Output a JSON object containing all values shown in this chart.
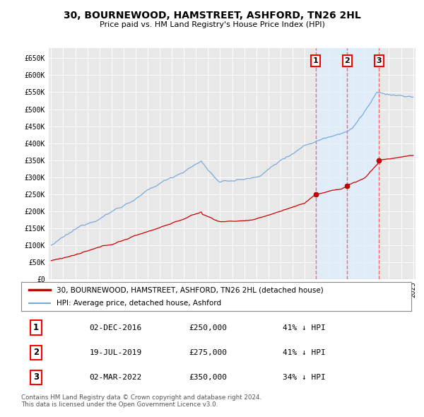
{
  "title": "30, BOURNEWOOD, HAMSTREET, ASHFORD, TN26 2HL",
  "subtitle": "Price paid vs. HM Land Registry's House Price Index (HPI)",
  "background_color": "#ffffff",
  "plot_bg_color": "#e8e8e8",
  "grid_color": "#ffffff",
  "ylim": [
    0,
    680000
  ],
  "yticks": [
    0,
    50000,
    100000,
    150000,
    200000,
    250000,
    300000,
    350000,
    400000,
    450000,
    500000,
    550000,
    600000,
    650000
  ],
  "ytick_labels": [
    "£0",
    "£50K",
    "£100K",
    "£150K",
    "£200K",
    "£250K",
    "£300K",
    "£350K",
    "£400K",
    "£450K",
    "£500K",
    "£550K",
    "£600K",
    "£650K"
  ],
  "sale_year_floats": [
    2016.92,
    2019.54,
    2022.17
  ],
  "sale_prices": [
    250000,
    275000,
    350000
  ],
  "sale_labels": [
    "1",
    "2",
    "3"
  ],
  "vline_color": "#ff6666",
  "shade_color": "#ddeeff",
  "sale_line_color": "#cc0000",
  "hpi_line_color": "#7aaadd",
  "sale_dot_color": "#cc0000",
  "legend_sale_label": "30, BOURNEWOOD, HAMSTREET, ASHFORD, TN26 2HL (detached house)",
  "legend_hpi_label": "HPI: Average price, detached house, Ashford",
  "table_rows": [
    [
      "1",
      "02-DEC-2016",
      "£250,000",
      "41% ↓ HPI"
    ],
    [
      "2",
      "19-JUL-2019",
      "£275,000",
      "41% ↓ HPI"
    ],
    [
      "3",
      "02-MAR-2022",
      "£350,000",
      "34% ↓ HPI"
    ]
  ],
  "footer_text": "Contains HM Land Registry data © Crown copyright and database right 2024.\nThis data is licensed under the Open Government Licence v3.0.",
  "xstart_year": 1995,
  "xend_year": 2025
}
